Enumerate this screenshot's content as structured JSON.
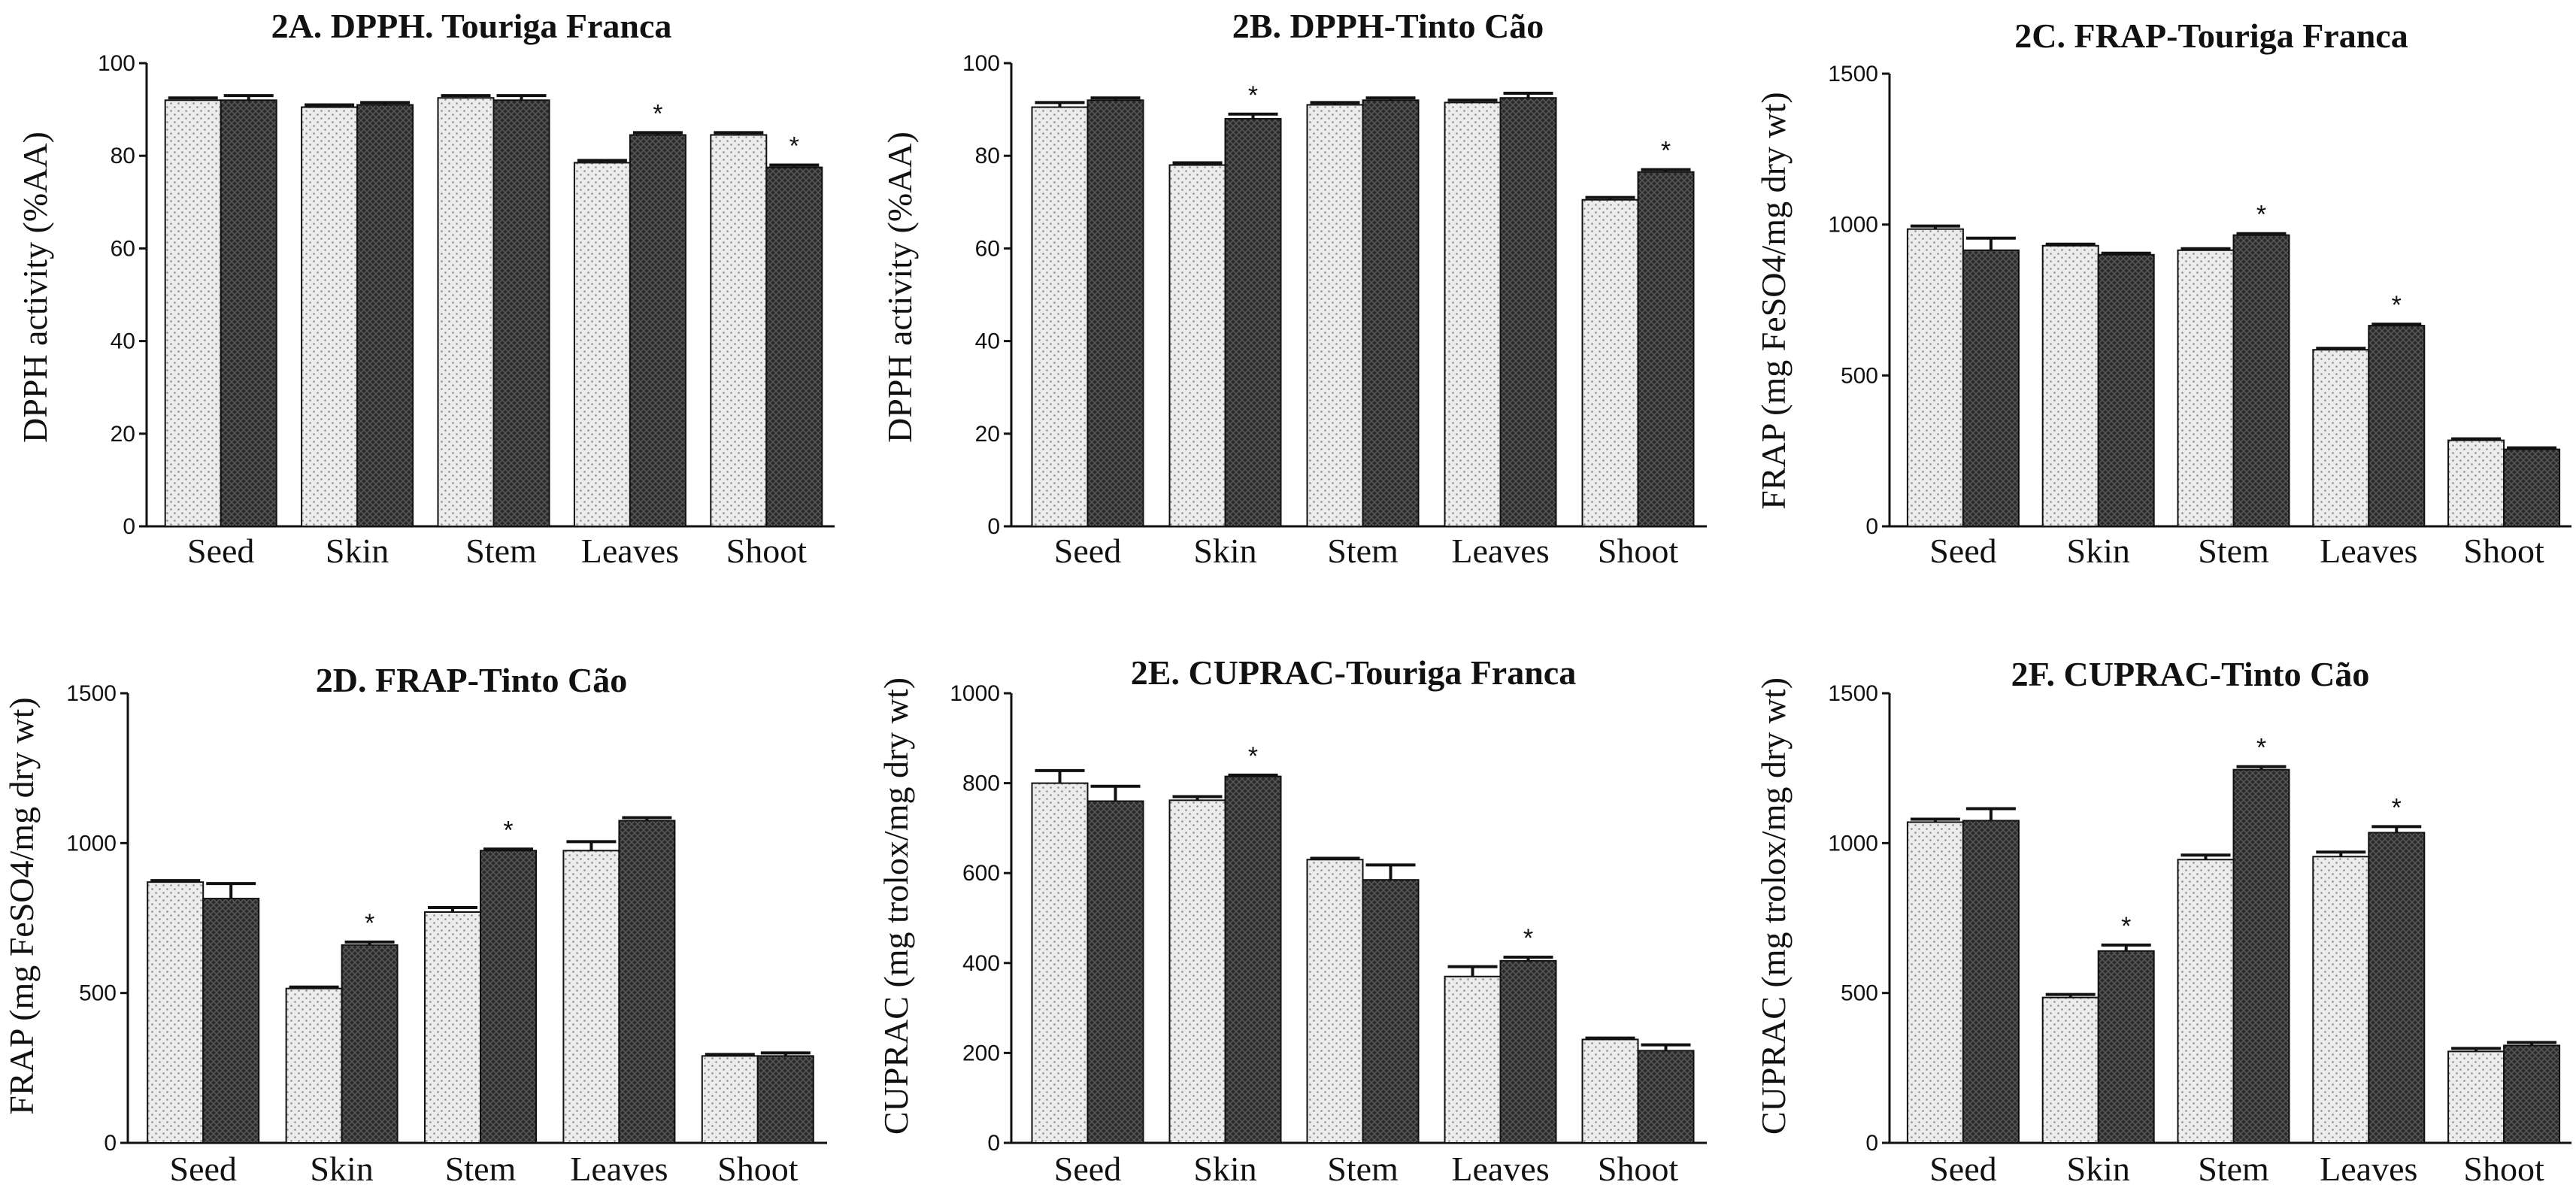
{
  "figure": {
    "patterns": {
      "light_bar": "dotted light grey",
      "dark_bar": "cross-hatched dark grey"
    },
    "colors": {
      "light_fill": "#ececec",
      "light_dot": "#8f8f8f",
      "dark_fill": "#2b2b2b",
      "dark_hatch": "#5a5a5a",
      "ink": "#111111"
    }
  },
  "chart_data": [
    {
      "id": "2A",
      "type": "bar",
      "title": "2A. DPPH. Touriga Franca",
      "xlabel": "",
      "ylabel": "DPPH activity (%AA)",
      "ylim": [
        0,
        100
      ],
      "yticks": [
        "0",
        "20",
        "40",
        "60",
        "80",
        "100"
      ],
      "categories": [
        "Seed",
        "Skin",
        "Stem",
        "Leaves",
        "Shoot"
      ],
      "series": [
        {
          "name": "light",
          "values": [
            92,
            90.5,
            92.5,
            78.5,
            84.5
          ],
          "errors": [
            0.5,
            0.5,
            0.5,
            0.5,
            0.5
          ]
        },
        {
          "name": "dark",
          "values": [
            92,
            91,
            92,
            84.5,
            77.5
          ],
          "errors": [
            1,
            0.5,
            1,
            0.5,
            0.5
          ]
        }
      ],
      "significance": [
        "",
        "",
        "",
        "*",
        "*"
      ]
    },
    {
      "id": "2B",
      "type": "bar",
      "title": "2B. DPPH-Tinto Cão",
      "xlabel": "",
      "ylabel": "DPPH activity (%AA)",
      "ylim": [
        0,
        100
      ],
      "yticks": [
        "0",
        "20",
        "40",
        "60",
        "80",
        "100"
      ],
      "categories": [
        "Seed",
        "Skin",
        "Stem",
        "Leaves",
        "Shoot"
      ],
      "series": [
        {
          "name": "light",
          "values": [
            90.5,
            78,
            91,
            91.5,
            70.5
          ],
          "errors": [
            1,
            0.5,
            0.5,
            0.5,
            0.5
          ]
        },
        {
          "name": "dark",
          "values": [
            92,
            88,
            92,
            92.5,
            76.5
          ],
          "errors": [
            0.5,
            1,
            0.5,
            1,
            0.5
          ]
        }
      ],
      "significance": [
        "",
        "*",
        "",
        "",
        "*"
      ]
    },
    {
      "id": "2C",
      "type": "bar",
      "title": "2C. FRAP-Touriga Franca",
      "xlabel": "",
      "ylabel": "FRAP (mg FeSO4/mg dry wt)",
      "ylim": [
        0,
        1500
      ],
      "yticks": [
        "0",
        "500",
        "1000",
        "1500"
      ],
      "categories": [
        "Seed",
        "Skin",
        "Stem",
        "Leaves",
        "Shoot"
      ],
      "series": [
        {
          "name": "light",
          "values": [
            985,
            930,
            915,
            585,
            285
          ],
          "errors": [
            10,
            5,
            5,
            5,
            5
          ]
        },
        {
          "name": "dark",
          "values": [
            915,
            900,
            965,
            665,
            255
          ],
          "errors": [
            40,
            5,
            5,
            5,
            5
          ]
        }
      ],
      "significance": [
        "",
        "",
        "*",
        "*",
        ""
      ]
    },
    {
      "id": "2D",
      "type": "bar",
      "title": "2D. FRAP-Tinto Cão",
      "xlabel": "",
      "ylabel": "FRAP (mg FeSO4/mg dry wt)",
      "ylim": [
        0,
        1500
      ],
      "yticks": [
        "0",
        "500",
        "1000",
        "1500"
      ],
      "categories": [
        "Seed",
        "Skin",
        "Stem",
        "Leaves",
        "Shoot"
      ],
      "series": [
        {
          "name": "light",
          "values": [
            870,
            515,
            770,
            975,
            290
          ],
          "errors": [
            5,
            5,
            15,
            30,
            5
          ]
        },
        {
          "name": "dark",
          "values": [
            815,
            660,
            975,
            1075,
            290
          ],
          "errors": [
            50,
            10,
            5,
            10,
            10
          ]
        }
      ],
      "significance": [
        "",
        "*",
        "*",
        "",
        ""
      ]
    },
    {
      "id": "2E",
      "type": "bar",
      "title": "2E. CUPRAC-Touriga Franca",
      "xlabel": "",
      "ylabel": "CUPRAC (mg trolox/mg dry wt)",
      "ylim": [
        0,
        1000
      ],
      "yticks": [
        "0",
        "200",
        "400",
        "600",
        "800",
        "1000"
      ],
      "categories": [
        "Seed",
        "Skin",
        "Stem",
        "Leaves",
        "Shoot"
      ],
      "series": [
        {
          "name": "light",
          "values": [
            800,
            762,
            630,
            370,
            230
          ],
          "errors": [
            28,
            8,
            3,
            22,
            3
          ]
        },
        {
          "name": "dark",
          "values": [
            760,
            815,
            585,
            405,
            205
          ],
          "errors": [
            33,
            3,
            33,
            8,
            13
          ]
        }
      ],
      "significance": [
        "",
        "*",
        "",
        "*",
        ""
      ]
    },
    {
      "id": "2F",
      "type": "bar",
      "title": "2F. CUPRAC-Tinto Cão",
      "xlabel": "",
      "ylabel": "CUPRAC (mg trolox/mg dry wt)",
      "ylim": [
        0,
        1500
      ],
      "yticks": [
        "0",
        "500",
        "1000",
        "1500"
      ],
      "categories": [
        "Seed",
        "Skin",
        "Stem",
        "Leaves",
        "Shoot"
      ],
      "series": [
        {
          "name": "light",
          "values": [
            1070,
            485,
            945,
            955,
            305
          ],
          "errors": [
            10,
            10,
            15,
            15,
            10
          ]
        },
        {
          "name": "dark",
          "values": [
            1075,
            640,
            1245,
            1035,
            325
          ],
          "errors": [
            40,
            20,
            10,
            20,
            10
          ]
        }
      ],
      "significance": [
        "",
        "*",
        "*",
        "*",
        ""
      ]
    }
  ]
}
